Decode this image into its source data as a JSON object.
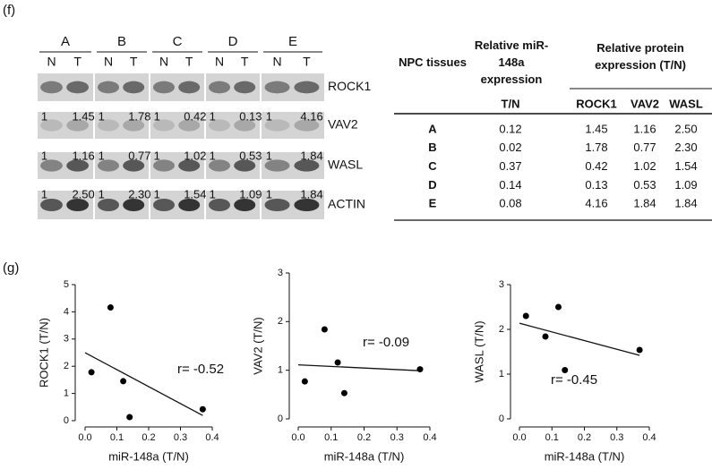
{
  "figure": {
    "panel_f_label": "(f)",
    "panel_g_label": "(g)"
  },
  "blot": {
    "groups": [
      "A",
      "B",
      "C",
      "D",
      "E"
    ],
    "lanes": [
      "N",
      "T"
    ],
    "proteins": [
      "ROCK1",
      "VAV2",
      "WASL",
      "ACTIN"
    ],
    "ratios": [
      [
        [
          "1",
          "1.45"
        ],
        [
          "1",
          "1.78"
        ],
        [
          "1",
          "0.42"
        ],
        [
          "1",
          "0.13"
        ],
        [
          "1",
          "4.16"
        ]
      ],
      [
        [
          "1",
          "1.16"
        ],
        [
          "1",
          "0.77"
        ],
        [
          "1",
          "1.02"
        ],
        [
          "1",
          "0.53"
        ],
        [
          "1",
          "1.84"
        ]
      ],
      [
        [
          "1",
          "2.50"
        ],
        [
          "1",
          "2.30"
        ],
        [
          "1",
          "1.54"
        ],
        [
          "1",
          "1.09"
        ],
        [
          "1",
          "1.84"
        ]
      ]
    ]
  },
  "table": {
    "headers": [
      "NPC tissues",
      "Relative miR-148a expression",
      "Relative protein expression (T/N)"
    ],
    "subheaders": [
      "T/N",
      "ROCK1",
      "VAV2",
      "WASL"
    ],
    "rows": [
      [
        "A",
        "0.12",
        "1.45",
        "1.16",
        "2.50"
      ],
      [
        "B",
        "0.02",
        "1.78",
        "0.77",
        "2.30"
      ],
      [
        "C",
        "0.37",
        "0.42",
        "1.02",
        "1.54"
      ],
      [
        "D",
        "0.14",
        "0.13",
        "0.53",
        "1.09"
      ],
      [
        "E",
        "0.08",
        "4.16",
        "1.84",
        "1.84"
      ]
    ]
  },
  "chart_data": [
    {
      "type": "scatter",
      "x": [
        0.12,
        0.02,
        0.37,
        0.14,
        0.08
      ],
      "values": [
        1.45,
        1.78,
        0.42,
        0.13,
        4.16
      ],
      "color": "#000000",
      "trendline": true,
      "xlim": [
        0,
        0.4
      ],
      "ylim": [
        0,
        5
      ],
      "xticks": [
        {
          "value": 0,
          "label": "0.0"
        },
        0.1,
        0.2,
        0.3,
        0.4
      ],
      "yticks": [
        0,
        1,
        2,
        3,
        4,
        5
      ],
      "xlabel": "miR-148a (T/N)",
      "ylabel": "ROCK1 (T/N)",
      "annotation": "r= -0.52"
    },
    {
      "type": "scatter",
      "x": [
        0.12,
        0.02,
        0.37,
        0.14,
        0.08
      ],
      "values": [
        1.16,
        0.77,
        1.02,
        0.53,
        1.84
      ],
      "color": "#000000",
      "trendline": true,
      "xlim": [
        0,
        0.4
      ],
      "ylim": [
        0,
        3
      ],
      "xticks": [
        {
          "value": 0,
          "label": "0.0"
        },
        0.1,
        0.2,
        0.3,
        0.4
      ],
      "yticks": [
        0,
        1,
        2,
        3
      ],
      "xlabel": "miR-148a (T/N)",
      "ylabel": "VAV2 (T/N)",
      "annotation": "r= -0.09"
    },
    {
      "type": "scatter",
      "x": [
        0.12,
        0.02,
        0.37,
        0.14,
        0.08
      ],
      "values": [
        2.5,
        2.3,
        1.54,
        1.09,
        1.84
      ],
      "color": "#000000",
      "trendline": true,
      "xlim": [
        0,
        0.4
      ],
      "ylim": [
        0,
        3
      ],
      "xticks": [
        {
          "value": 0,
          "label": "0.0"
        },
        0.1,
        0.2,
        0.3,
        0.4
      ],
      "yticks": [
        0,
        1,
        2,
        3
      ],
      "xlabel": "miR-148a (T/N)",
      "ylabel": "WASL (T/N)",
      "annotation": "r= -0.45"
    }
  ]
}
